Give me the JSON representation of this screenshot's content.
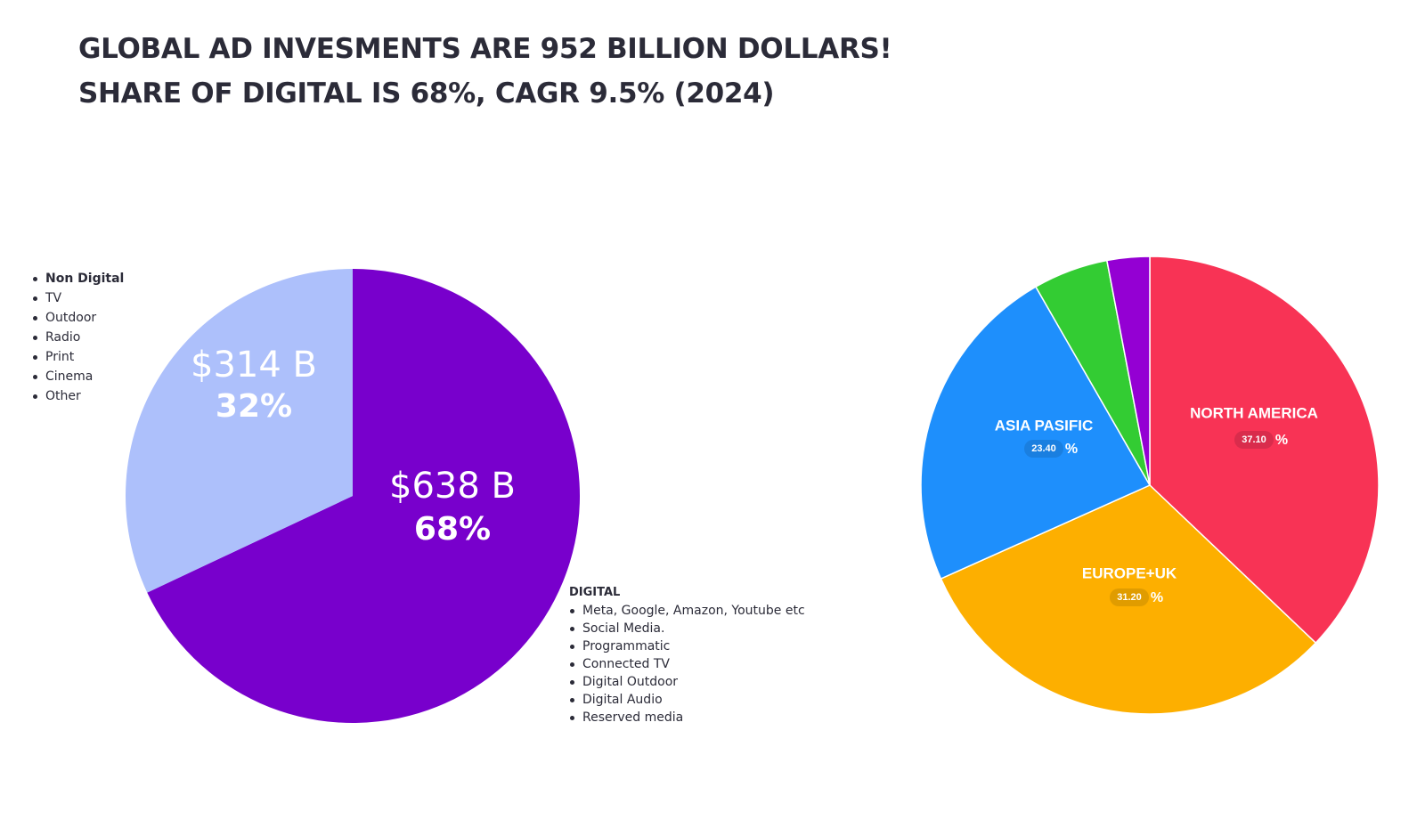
{
  "headline": {
    "line1": "GLOBAL AD INVESMENTS ARE 952 BILLION DOLLARS!",
    "line2": "SHARE OF DIGITAL IS 68%, CAGR 9.5% (2024)"
  },
  "nondigital_list": [
    "Non Digital",
    "TV",
    "Outdoor",
    "Radio",
    "Print",
    "Cinema",
    "Other"
  ],
  "digital_list": {
    "title": "DIGITAL",
    "items": [
      "Meta, Google, Amazon, Youtube etc",
      "Social Media.",
      "Programmatic",
      "Connected TV",
      "Digital Outdoor",
      "Digital Audio",
      "Reserved media"
    ]
  },
  "chart_data": [
    {
      "type": "pie",
      "slices": [
        {
          "value_label": "$638 B",
          "percent": 68,
          "percent_label": "68%",
          "color": "#7800cc",
          "label_color": "#ffffff"
        },
        {
          "value_label": "$314 B",
          "percent": 32,
          "percent_label": "32%",
          "color": "#adc0fb",
          "label_color": "#ffffff"
        }
      ]
    },
    {
      "type": "pie",
      "slices": [
        {
          "name": "NORTH AMERICA",
          "percent": 37.1,
          "percent_label": "37.10",
          "color": "#f83355",
          "badge_color": "#d92c4c"
        },
        {
          "name": "EUROPE+UK",
          "percent": 31.2,
          "percent_label": "31.20",
          "color": "#fdaf00",
          "badge_color": "#e09c00"
        },
        {
          "name": "ASIA PASIFIC",
          "percent": 23.4,
          "percent_label": "23.40",
          "color": "#1e8ffc",
          "badge_color": "#1a7fe0"
        },
        {
          "name": "",
          "percent": 5.3,
          "percent_label": "",
          "color": "#33cc33",
          "badge_color": ""
        },
        {
          "name": "",
          "percent": 3.0,
          "percent_label": "",
          "color": "#9400d3",
          "badge_color": ""
        }
      ],
      "percent_sign": "%"
    }
  ]
}
